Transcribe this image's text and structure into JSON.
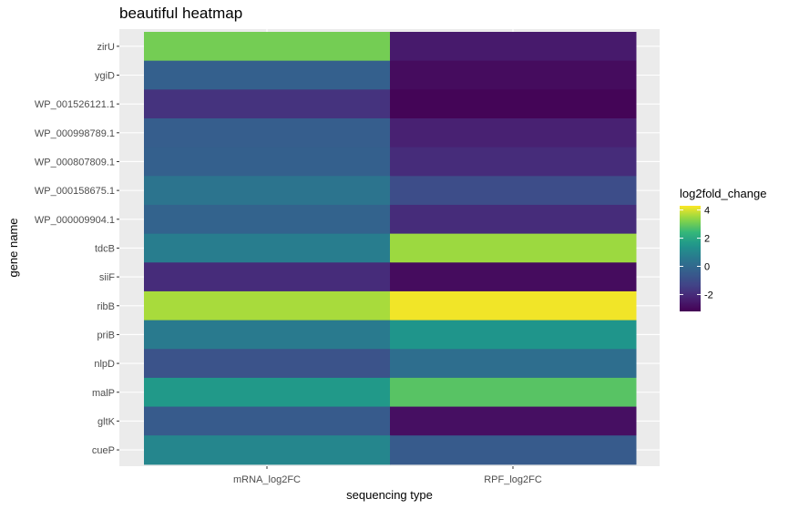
{
  "chart_data": {
    "type": "heatmap",
    "title": "beautiful heatmap",
    "xlabel": "sequencing type",
    "ylabel": "gene name",
    "x_categories": [
      "mRNA_log2FC",
      "RPF_log2FC"
    ],
    "y_categories": [
      "zirU",
      "ygiD",
      "WP_001526121.1",
      "WP_000998789.1",
      "WP_000807809.1",
      "WP_000158675.1",
      "WP_000009904.1",
      "tdcB",
      "siiF",
      "ribB",
      "priB",
      "nlpD",
      "malP",
      "gltK",
      "cueP"
    ],
    "values": [
      [
        3.1,
        -2.5
      ],
      [
        -0.3,
        -2.9
      ],
      [
        -1.8,
        -3.1
      ],
      [
        -0.4,
        -2.3
      ],
      [
        -0.3,
        -2.0
      ],
      [
        0.4,
        -1.0
      ],
      [
        -0.2,
        -2.0
      ],
      [
        0.7,
        3.5
      ],
      [
        -2.0,
        -2.9
      ],
      [
        3.6,
        4.2
      ],
      [
        0.6,
        1.5
      ],
      [
        -0.8,
        0.2
      ],
      [
        1.6,
        2.8
      ],
      [
        -0.5,
        -2.8
      ],
      [
        1.0,
        -0.5
      ]
    ],
    "colorbar": {
      "title": "log2fold_change",
      "range": [
        -3.2,
        4.3
      ],
      "ticks": [
        4,
        2,
        0,
        -2
      ],
      "tick_labels": [
        "4",
        "2",
        "0",
        "-2"
      ],
      "colormap": "viridis"
    },
    "panel_background": "#ebebeb",
    "grid": true,
    "legend_position": "right"
  }
}
